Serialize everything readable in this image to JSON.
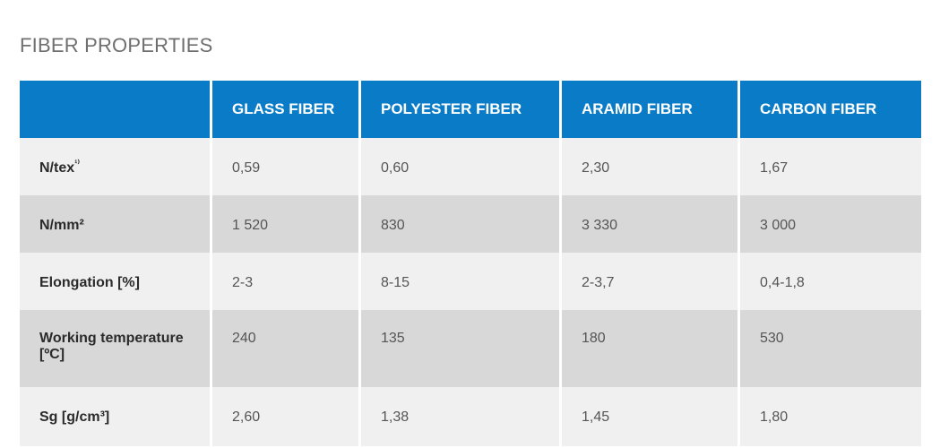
{
  "title": "FIBER PROPERTIES",
  "colors": {
    "header_bg": "#0a7bc7",
    "row_light": "#f0f0f0",
    "row_dark": "#d8d8d8"
  },
  "table": {
    "headers": [
      "",
      "GLASS FIBER",
      "POLYESTER FIBER",
      "ARAMID FIBER",
      "CARBON FIBER"
    ],
    "rows": [
      {
        "label": "N/tex",
        "label_sup": "¹⁾",
        "values": [
          "0,59",
          "0,60",
          "2,30",
          "1,67"
        ]
      },
      {
        "label": "N/mm²",
        "label_sup": "",
        "values": [
          "1 520",
          "830",
          "3 330",
          "3 000"
        ]
      },
      {
        "label": "Elongation [%]",
        "label_sup": "",
        "values": [
          "2-3",
          "8-15",
          "2-3,7",
          "0,4-1,8"
        ]
      },
      {
        "label": "Working temperature [ºC]",
        "label_sup": "",
        "values": [
          "240",
          "135",
          "180",
          "530"
        ]
      },
      {
        "label": "Sg [g/cm³]",
        "label_sup": "",
        "values": [
          "2,60",
          "1,38",
          "1,45",
          "1,80"
        ]
      }
    ]
  }
}
